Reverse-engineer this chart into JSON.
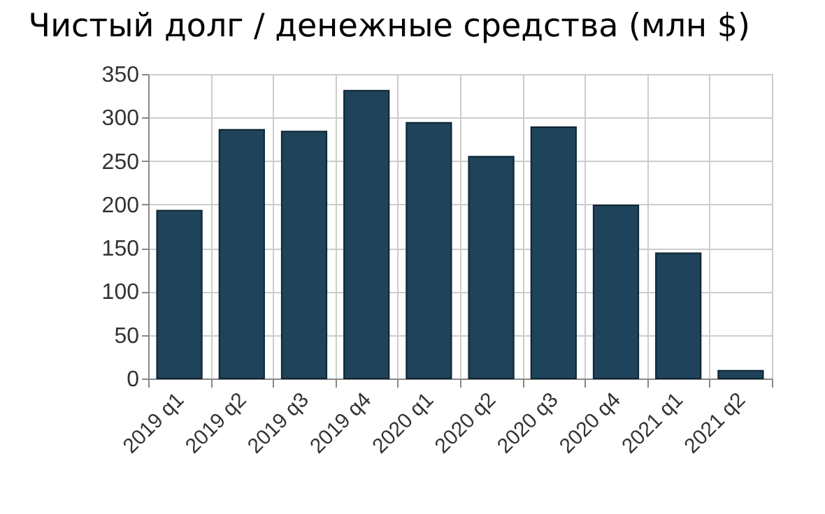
{
  "chart_data": {
    "type": "bar",
    "title": "Чистый долг / денежные средства (млн $)",
    "categories": [
      "2019 q1",
      "2019 q2",
      "2019 q3",
      "2019 q4",
      "2020 q1",
      "2020 q2",
      "2020 q3",
      "2020 q4",
      "2021 q1",
      "2021 q2"
    ],
    "values": [
      193,
      286,
      284,
      331,
      294,
      255,
      289,
      199,
      144,
      9
    ],
    "color": "#1f435a",
    "ylim": [
      0,
      350
    ],
    "yticks": [
      0,
      50,
      100,
      150,
      200,
      250,
      300,
      350
    ],
    "grid": true
  }
}
